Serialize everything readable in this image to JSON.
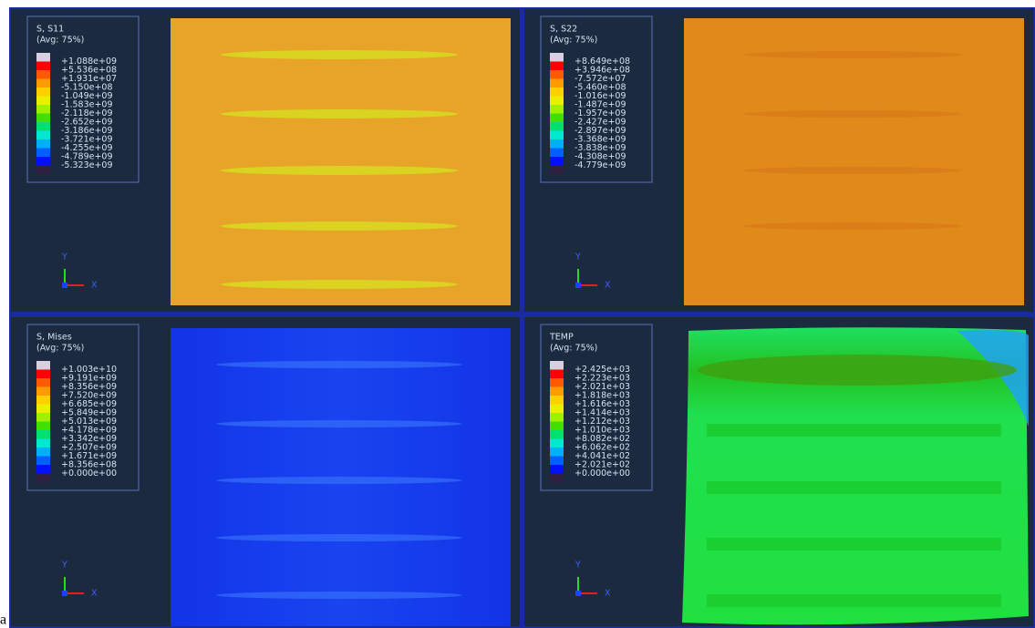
{
  "panels": [
    {
      "title": "S, S11",
      "subtitle": "(Avg: 75%)",
      "legend": [
        "+1.088e+09",
        "+5.536e+08",
        "+1.931e+07",
        "-5.150e+08",
        "-1.049e+09",
        "-1.583e+09",
        "-2.118e+09",
        "-2.652e+09",
        "-3.186e+09",
        "-3.721e+09",
        "-4.255e+09",
        "-4.789e+09",
        "-5.323e+09"
      ],
      "axis_y": "Y",
      "axis_x": "X"
    },
    {
      "title": "S, S22",
      "subtitle": "(Avg: 75%)",
      "legend": [
        "+8.649e+08",
        "+3.946e+08",
        "-7.572e+07",
        "-5.460e+08",
        "-1.016e+09",
        "-1.487e+09",
        "-1.957e+09",
        "-2.427e+09",
        "-2.897e+09",
        "-3.368e+09",
        "-3.838e+09",
        "-4.308e+09",
        "-4.779e+09"
      ],
      "axis_y": "Y",
      "axis_x": "X"
    },
    {
      "title": "S, Mises",
      "subtitle": "(Avg: 75%)",
      "legend": [
        "+1.003e+10",
        "+9.191e+09",
        "+8.356e+09",
        "+7.520e+09",
        "+6.685e+09",
        "+5.849e+09",
        "+5.013e+09",
        "+4.178e+09",
        "+3.342e+09",
        "+2.507e+09",
        "+1.671e+09",
        "+8.356e+08",
        "+0.000e+00"
      ],
      "axis_y": "Y",
      "axis_x": "X"
    },
    {
      "title": "TEMP",
      "subtitle": "(Avg: 75%)",
      "legend": [
        "+2.425e+03",
        "+2.223e+03",
        "+2.021e+03",
        "+1.818e+03",
        "+1.616e+03",
        "+1.414e+03",
        "+1.212e+03",
        "+1.010e+03",
        "+8.082e+02",
        "+6.062e+02",
        "+4.041e+02",
        "+2.021e+02",
        "+0.000e+00"
      ],
      "axis_y": "Y",
      "axis_x": "X"
    }
  ],
  "figure_label": "a"
}
